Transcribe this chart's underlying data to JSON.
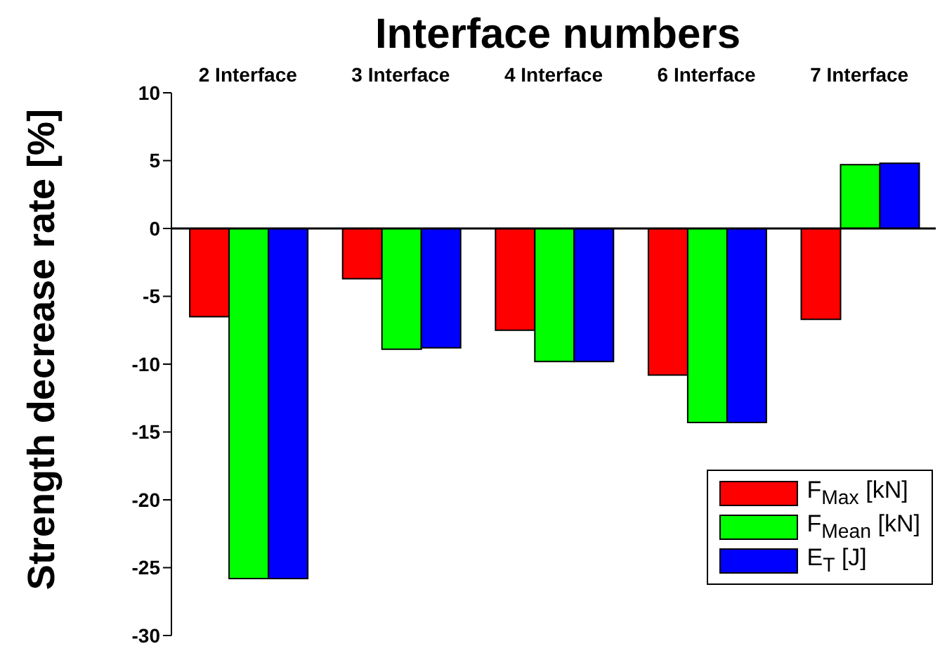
{
  "chart_data": {
    "type": "bar",
    "xlabel": "Interface numbers",
    "ylabel": "Strength decrease rate [%]",
    "categories": [
      "2 Interface",
      "3 Interface",
      "4 Interface",
      "6 Interface",
      "7 Interface"
    ],
    "series": [
      {
        "name": "F$_{Max}$ [kN]",
        "color": "#ff0000",
        "values": [
          -6.5,
          -3.7,
          -7.5,
          -10.8,
          -6.7
        ]
      },
      {
        "name": "F$_{Mean}$ [kN]",
        "color": "#00ff00",
        "values": [
          -25.8,
          -8.9,
          -9.8,
          -14.3,
          4.7
        ]
      },
      {
        "name": "E$_{T}$ [J]",
        "color": "#0000ff",
        "values": [
          -25.8,
          -8.8,
          -9.8,
          -14.3,
          4.8
        ]
      }
    ],
    "ylim": [
      -30,
      10
    ],
    "yticks": [
      -30,
      -25,
      -20,
      -15,
      -10,
      -5,
      0,
      5,
      10
    ],
    "legend": "bottom right"
  }
}
